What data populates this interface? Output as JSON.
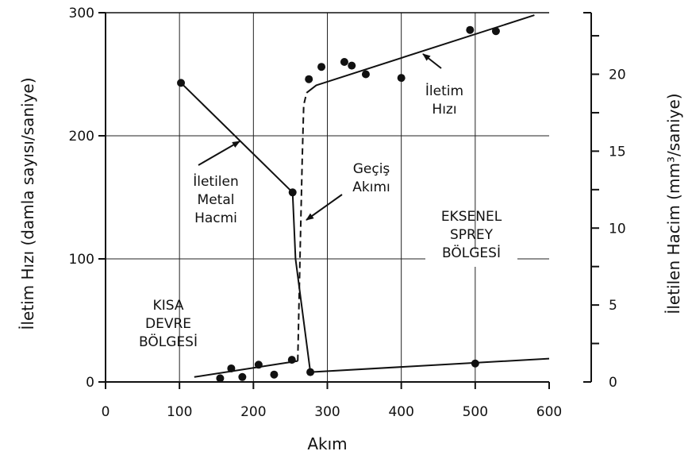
{
  "chart_data": {
    "type": "scatter",
    "xlabel": "Akım",
    "ylabel_left": "İletim Hızı (damla sayısı/saniye)",
    "ylabel_right": "İletilen Hacim (mm³/saniye)",
    "xlim": [
      0,
      600
    ],
    "ylim_left": [
      0,
      300
    ],
    "ylim_right": [
      0,
      24
    ],
    "x_ticks": [
      0,
      100,
      200,
      300,
      400,
      500,
      600
    ],
    "y_ticks_left": [
      0,
      100,
      200,
      300
    ],
    "y_ticks_right": [
      0,
      5,
      10,
      15,
      20
    ],
    "grid": true,
    "series": [
      {
        "points": [
          [
            155,
            3
          ],
          [
            170,
            11
          ],
          [
            185,
            4
          ],
          [
            207,
            14
          ],
          [
            228,
            6
          ],
          [
            252,
            18
          ],
          [
            275,
            246
          ],
          [
            292,
            256
          ],
          [
            323,
            260
          ],
          [
            333,
            257
          ],
          [
            352,
            250
          ],
          [
            400,
            247
          ],
          [
            493,
            286
          ],
          [
            528,
            285
          ]
        ]
      },
      {
        "points": [
          [
            102,
            243
          ],
          [
            253,
            154
          ],
          [
            277,
            8
          ],
          [
            500,
            15
          ]
        ]
      }
    ],
    "lines": [
      {
        "style": "solid",
        "x": [
          120,
          260
        ],
        "y": [
          4,
          17
        ]
      },
      {
        "style": "dashed",
        "x": [
          260,
          263,
          266,
          268,
          272
        ],
        "y": [
          17,
          100,
          180,
          225,
          235
        ]
      },
      {
        "style": "solid",
        "x": [
          272,
          285,
          580
        ],
        "y": [
          235,
          241,
          298
        ]
      },
      {
        "style": "solid",
        "x": [
          102,
          253,
          257,
          277,
          600
        ],
        "y": [
          243,
          154,
          100,
          8,
          19
        ]
      }
    ],
    "annotations": [
      {
        "lines": [
          "İletim",
          "Hızı"
        ]
      },
      {
        "lines": [
          "İletilen",
          "Metal",
          "Hacmi"
        ]
      },
      {
        "lines": [
          "Geçiş",
          "Akımı"
        ]
      },
      {
        "lines": [
          "EKSENEL",
          "SPREY",
          "BÖLGESİ"
        ]
      },
      {
        "lines": [
          "KISA",
          "DEVRE",
          "BÖLGESİ"
        ]
      }
    ]
  }
}
